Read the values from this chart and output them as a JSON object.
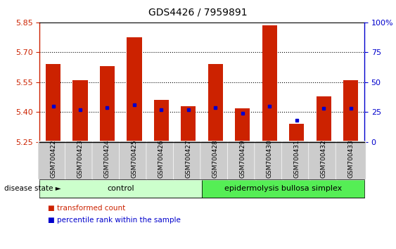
{
  "title": "GDS4426 / 7959891",
  "samples": [
    "GSM700422",
    "GSM700423",
    "GSM700424",
    "GSM700425",
    "GSM700426",
    "GSM700427",
    "GSM700428",
    "GSM700429",
    "GSM700430",
    "GSM700431",
    "GSM700432",
    "GSM700433"
  ],
  "transformed_count": [
    5.64,
    5.56,
    5.63,
    5.775,
    5.46,
    5.43,
    5.64,
    5.42,
    5.835,
    5.34,
    5.48,
    5.56
  ],
  "percentile_rank": [
    30,
    27,
    29,
    31,
    27,
    27,
    29,
    24,
    30,
    18,
    28,
    28
  ],
  "ylim_left": [
    5.25,
    5.85
  ],
  "ylim_right": [
    0,
    100
  ],
  "yticks_left": [
    5.25,
    5.4,
    5.55,
    5.7,
    5.85
  ],
  "yticks_right": [
    0,
    25,
    50,
    75,
    100
  ],
  "bar_color": "#CC2200",
  "dot_color": "#0000CC",
  "bg_color": "#FFFFFF",
  "xtick_bg_color": "#CCCCCC",
  "control_color": "#CCFFCC",
  "disease_color": "#55EE55",
  "control_label": "control",
  "disease_label": "epidermolysis bullosa simplex",
  "group_boundary": 6,
  "disease_state_label": "disease state",
  "legend_count_label": "transformed count",
  "legend_pct_label": "percentile rank within the sample",
  "dotted_lines": [
    5.4,
    5.55,
    5.7
  ],
  "baseline": 5.25,
  "bar_width": 0.55
}
